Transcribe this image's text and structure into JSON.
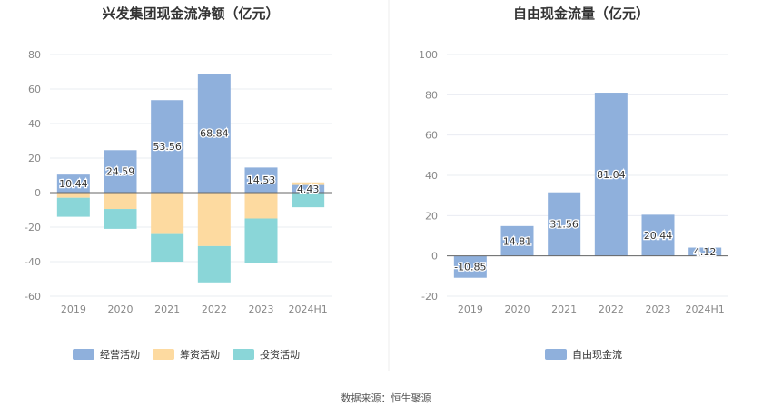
{
  "chart_data": [
    {
      "type": "bar",
      "stacked": true,
      "title": "兴发集团现金流净额（亿元）",
      "categories": [
        "2019",
        "2020",
        "2021",
        "2022",
        "2023",
        "2024H1"
      ],
      "ylim": [
        -60,
        80
      ],
      "yticks": [
        "80",
        "60",
        "40",
        "20",
        "0",
        "-20",
        "-40",
        "-60"
      ],
      "grid": true,
      "legend_position": "bottom",
      "series": [
        {
          "name": "经营活动",
          "color": "#8fb0dc",
          "values": [
            10.44,
            24.59,
            53.56,
            68.84,
            14.53,
            4.43
          ],
          "labels": [
            "10.44",
            "24.59",
            "53.56",
            "68.84",
            "14.53",
            "4.43"
          ]
        },
        {
          "name": "筹资活动",
          "color": "#fddaa0",
          "values": [
            -3,
            -9.5,
            -24,
            -31,
            -15,
            1.5
          ]
        },
        {
          "name": "投资活动",
          "color": "#8ad6d8",
          "values": [
            -11,
            -11.5,
            -16,
            -21,
            -26,
            -8.5
          ]
        }
      ]
    },
    {
      "type": "bar",
      "title": "自由现金流量（亿元）",
      "categories": [
        "2019",
        "2020",
        "2021",
        "2022",
        "2023",
        "2024H1"
      ],
      "ylim": [
        -20,
        100
      ],
      "yticks": [
        "100",
        "80",
        "60",
        "40",
        "20",
        "0",
        "-20"
      ],
      "grid": true,
      "legend_position": "bottom",
      "series": [
        {
          "name": "自由现金流",
          "color": "#8fb0dc",
          "values": [
            -10.85,
            14.81,
            31.56,
            81.04,
            20.44,
            4.12
          ],
          "labels": [
            "-10.85",
            "14.81",
            "31.56",
            "81.04",
            "20.44",
            "4.12"
          ]
        }
      ]
    }
  ],
  "footer": {
    "source": "数据来源：恒生聚源"
  },
  "colors": {
    "axis": "#999999",
    "grid": "#e9ecf2",
    "divider": "#eeeeee"
  }
}
